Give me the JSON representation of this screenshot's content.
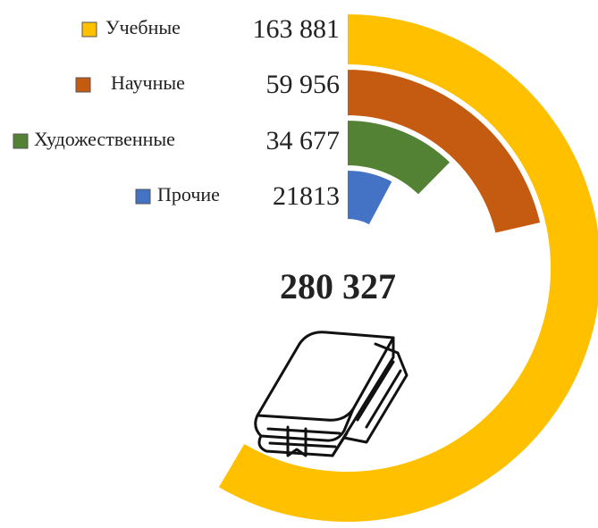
{
  "chart_data": {
    "type": "radial-bar",
    "total": 280327,
    "total_label": "280 327",
    "categories": [
      "Учебные",
      "Научные",
      "Художественные",
      "Прочие"
    ],
    "values": [
      163881,
      59956,
      34677,
      21813
    ],
    "value_labels": [
      "163 881",
      "59 956",
      "34 677",
      "21813"
    ],
    "colors": [
      "#FFC000",
      "#C55A11",
      "#548235",
      "#4472C4"
    ]
  }
}
